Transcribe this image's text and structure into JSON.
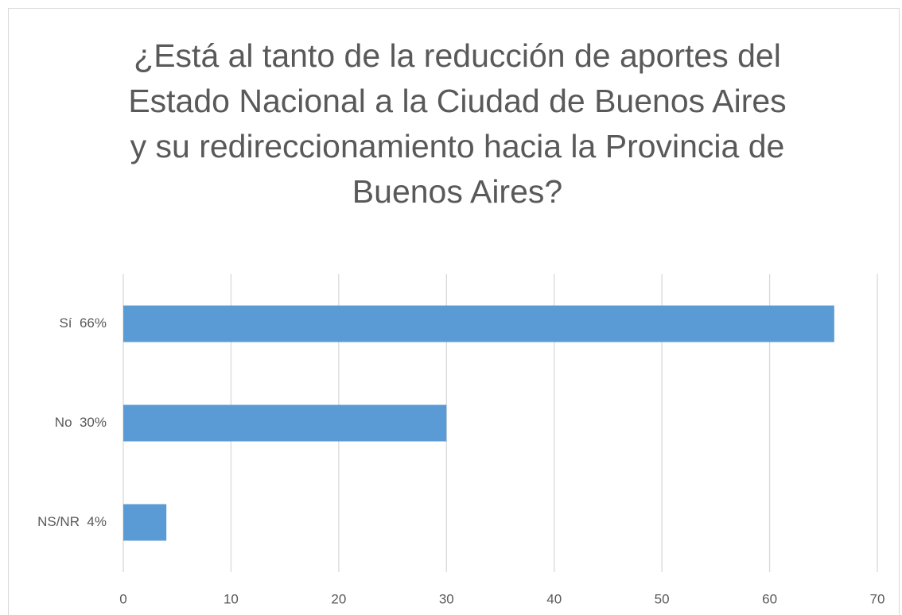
{
  "chart_data": {
    "type": "bar",
    "orientation": "horizontal",
    "title": [
      "¿Está al tanto de la reducción de aportes del",
      "Estado Nacional a la Ciudad de Buenos Aires",
      "y su redireccionamiento hacia la Provincia de",
      "Buenos Aires?"
    ],
    "categories": [
      "Sí  66%",
      "No  30%",
      "NS/NR  4%"
    ],
    "values": [
      66,
      30,
      4
    ],
    "color": "#5b9bd5",
    "xlim": [
      0,
      70
    ],
    "xticks": [
      0,
      10,
      20,
      30,
      40,
      50,
      60,
      70
    ],
    "grid": true
  }
}
